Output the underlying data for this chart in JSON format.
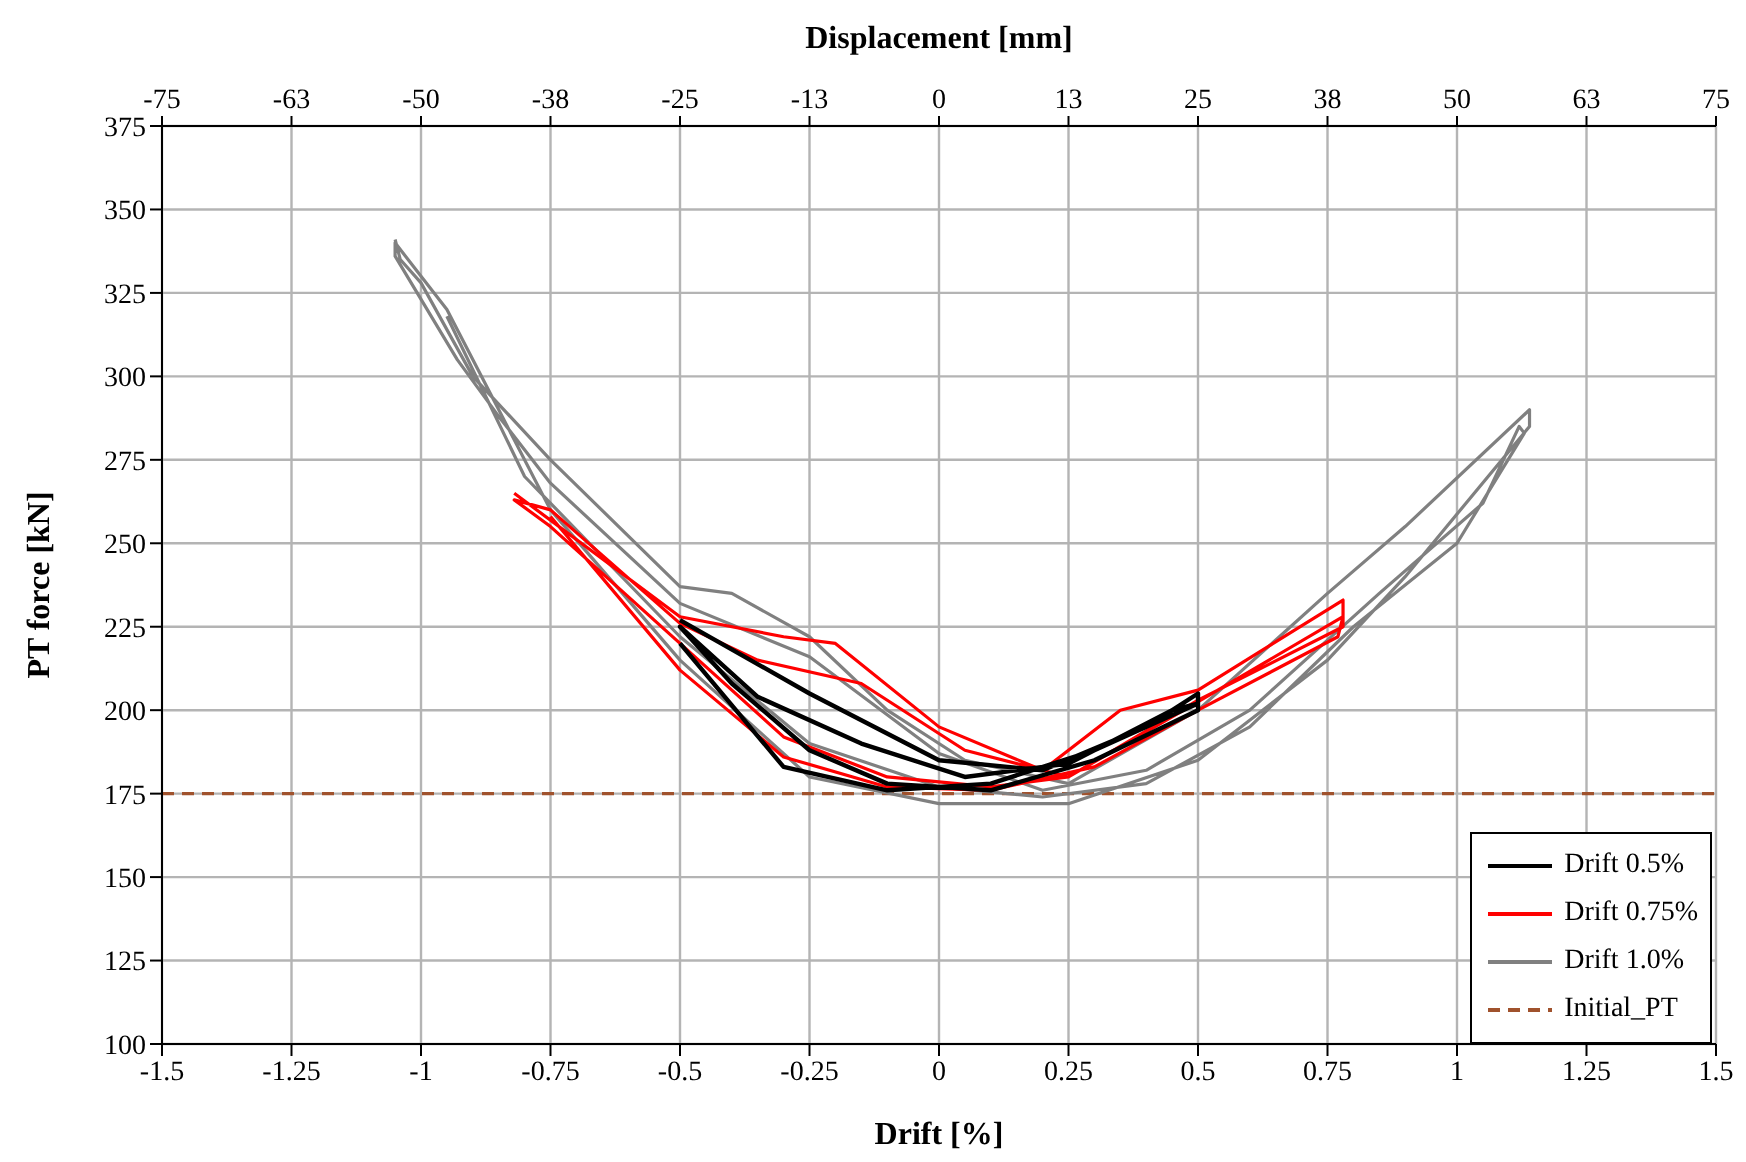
{
  "chart_data": {
    "type": "line",
    "xlabel": "Drift [%]",
    "ylabel": "PT force [kN]",
    "x2label": "Displacement [mm]",
    "xlim": [
      -1.5,
      1.5
    ],
    "xticks": [
      -1.5,
      -1.25,
      -1,
      -0.75,
      -0.5,
      -0.25,
      0,
      0.25,
      0.5,
      0.75,
      1,
      1.25,
      1.5
    ],
    "x2lim": [
      -75,
      75
    ],
    "x2ticks": [
      -75,
      {
        "value": -62.5,
        "label": "-63"
      },
      -50,
      {
        "value": -37.5,
        "label": "-38"
      },
      -25,
      {
        "value": -12.5,
        "label": "-13"
      },
      0,
      {
        "value": 12.5,
        "label": "13"
      },
      25,
      {
        "value": 37.5,
        "label": "38"
      },
      50,
      {
        "value": 62.5,
        "label": "63"
      },
      75
    ],
    "ylim": [
      100,
      375
    ],
    "yticks": [
      100,
      125,
      150,
      175,
      200,
      225,
      250,
      275,
      300,
      325,
      350,
      375
    ],
    "grid": true,
    "legend": "bottom right",
    "marker": "none",
    "series": [
      {
        "name": "Drift 1.0%",
        "color": "#808080",
        "x": [
          -1.05,
          -1.04,
          -1.0,
          -0.9,
          -0.75,
          -0.5,
          -0.4,
          -0.25,
          -0.1,
          0.05,
          0.25,
          0.5,
          0.75,
          0.9,
          1.14,
          1.14,
          0.9,
          0.75,
          0.5,
          0.25,
          0,
          -0.25,
          -0.5,
          -0.75,
          -0.95,
          -1.05,
          -1.05,
          -0.93,
          -0.85,
          -0.75,
          -0.5,
          -0.25,
          0,
          0.2,
          0.4,
          0.6,
          0.85,
          1.05,
          1.12,
          1.13,
          1.0,
          0.8,
          0.6,
          0.4,
          0.2,
          0,
          -0.25,
          -0.5,
          -0.8,
          -0.95
        ],
        "values": [
          341,
          335,
          328,
          300,
          275,
          237,
          235,
          222,
          200,
          185,
          178,
          200,
          235,
          255,
          290,
          285,
          240,
          215,
          185,
          172,
          172,
          180,
          215,
          260,
          320,
          340,
          336,
          305,
          288,
          268,
          232,
          216,
          187,
          176,
          182,
          200,
          235,
          262,
          285,
          283,
          250,
          225,
          195,
          178,
          174,
          177,
          190,
          222,
          270,
          318
        ]
      },
      {
        "name": "Drift 0.75%",
        "color": "#ff0000",
        "x": [
          -0.82,
          -0.5,
          -0.3,
          -0.2,
          0,
          0.2,
          0.35,
          0.5,
          0.78,
          0.78,
          0.5,
          0.25,
          0.1,
          -0.1,
          -0.3,
          -0.5,
          -0.75,
          -0.82,
          -0.75,
          -0.5,
          -0.35,
          -0.15,
          0.05,
          0.25,
          0.45,
          0.78,
          0.77,
          0.5,
          0.3,
          0.1,
          -0.1,
          -0.3,
          -0.5,
          -0.75
        ],
        "values": [
          265,
          228,
          222,
          220,
          195,
          182,
          200,
          206,
          233,
          225,
          203,
          180,
          177,
          180,
          192,
          220,
          255,
          263,
          260,
          226,
          215,
          208,
          188,
          180,
          198,
          228,
          222,
          200,
          183,
          176,
          177,
          186,
          212,
          258
        ]
      },
      {
        "name": "Drift 0.5%",
        "color": "#000000",
        "x": [
          -0.5,
          -0.25,
          0,
          0.2,
          0.4,
          0.5,
          0.5,
          0.3,
          0.1,
          -0.1,
          -0.25,
          -0.4,
          -0.5,
          -0.35,
          -0.15,
          0.05,
          0.25,
          0.45,
          0.5,
          0.3,
          0.1,
          -0.1,
          -0.3,
          -0.5
        ],
        "values": [
          227,
          205,
          185,
          182,
          195,
          205,
          200,
          185,
          176,
          178,
          188,
          208,
          225,
          204,
          190,
          180,
          184,
          200,
          202,
          188,
          178,
          176,
          183,
          220
        ]
      }
    ],
    "ref_lines": [
      {
        "axis": "y",
        "value": 175,
        "label": "Initial_PT",
        "color": "#a0522d",
        "line_style": "dashed"
      }
    ]
  }
}
